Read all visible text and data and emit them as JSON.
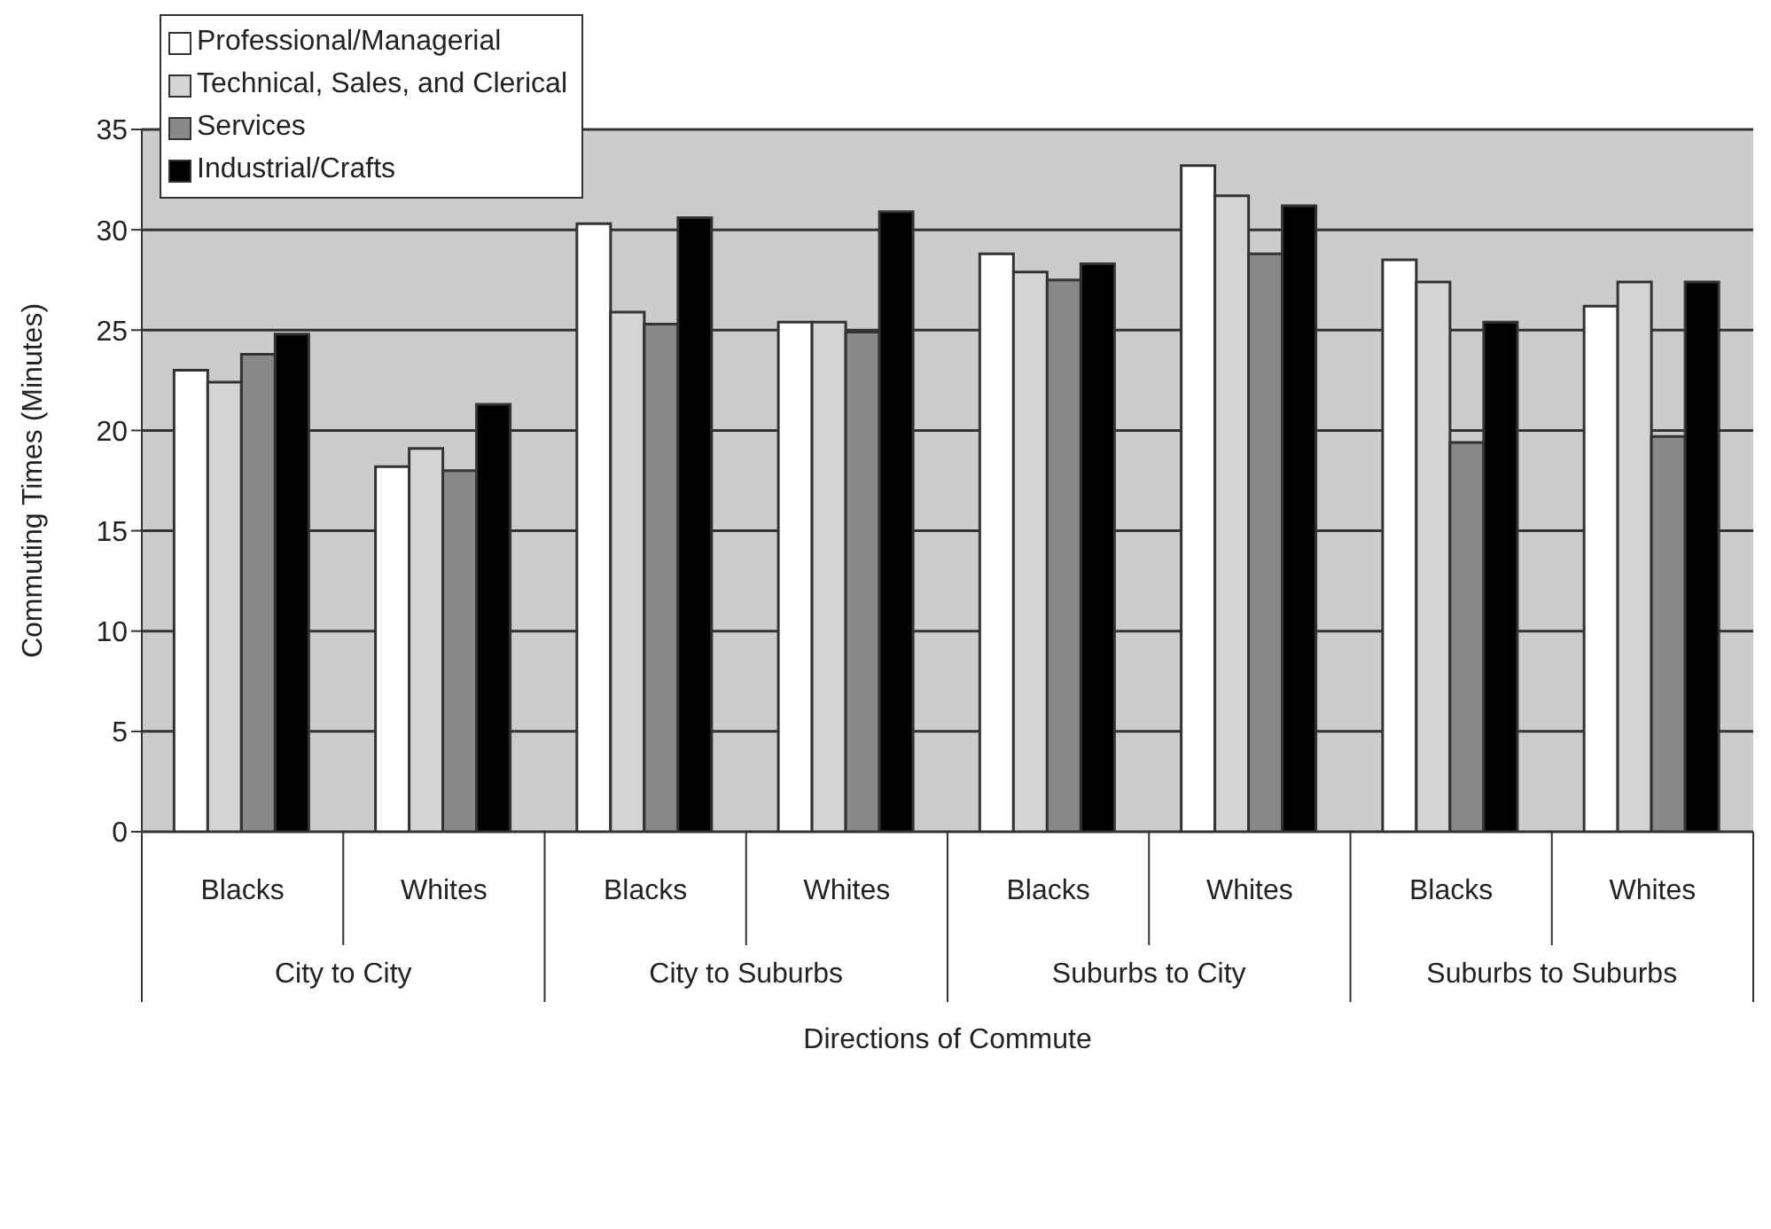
{
  "chart_data": {
    "type": "bar",
    "xlabel": "Directions of Commute",
    "ylabel": "Commuting Times (Minutes)",
    "categories": [
      "Blacks",
      "Whites",
      "Blacks",
      "Whites",
      "Blacks",
      "Whites",
      "Blacks",
      "Whites"
    ],
    "annotations": [
      "City to City",
      "City to Suburbs",
      "Suburbs to City",
      "Suburbs to Suburbs"
    ],
    "series": [
      {
        "name": "Professional/Managerial",
        "color": "#ffffff",
        "values": [
          23.0,
          18.2,
          30.3,
          25.4,
          28.8,
          33.2,
          28.5,
          26.2
        ]
      },
      {
        "name": "Technical, Sales, and Clerical",
        "color": "#d4d4d4",
        "values": [
          22.4,
          19.1,
          25.9,
          25.4,
          27.9,
          31.7,
          27.4,
          27.4
        ]
      },
      {
        "name": "Services",
        "color": "#888888",
        "values": [
          23.8,
          18.0,
          25.3,
          24.9,
          27.5,
          28.8,
          19.4,
          19.7
        ]
      },
      {
        "name": "Industrial/Crafts",
        "color": "#000000",
        "values": [
          24.8,
          21.3,
          30.6,
          30.9,
          28.3,
          31.2,
          25.4,
          27.4
        ]
      }
    ],
    "ylim": [
      0,
      35
    ],
    "yticks": [
      0,
      5,
      10,
      15,
      20,
      25,
      30,
      35
    ],
    "grid": "y",
    "legend": "top left"
  }
}
